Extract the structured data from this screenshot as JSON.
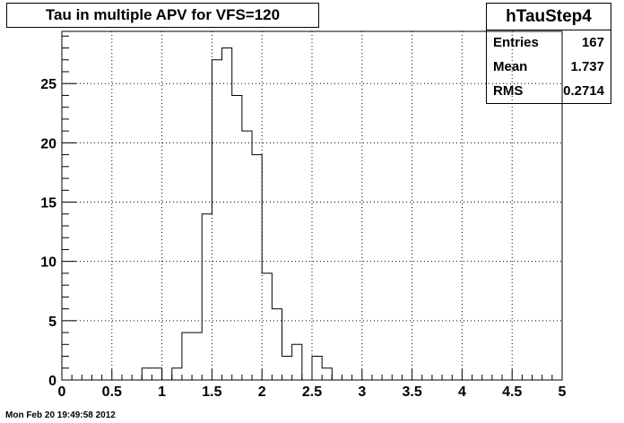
{
  "title": "Tau in multiple APV for VFS=120",
  "stats": {
    "name": "hTauStep4",
    "rows": [
      {
        "label": "Entries",
        "value": "167"
      },
      {
        "label": "Mean",
        "value": "1.737"
      },
      {
        "label": "RMS",
        "value": "0.2714"
      }
    ]
  },
  "timestamp": "Mon Feb 20 19:49:58 2012",
  "chart_data": {
    "type": "bar",
    "title": "Tau in multiple APV for VFS=120",
    "xlabel": "",
    "ylabel": "",
    "xlim": [
      0,
      5
    ],
    "ylim": [
      0,
      29.4
    ],
    "grid": true,
    "bin_width": 0.1,
    "bin_starts": [
      0.8,
      0.9,
      1.1,
      1.2,
      1.3,
      1.4,
      1.5,
      1.6,
      1.7,
      1.8,
      1.9,
      2.0,
      2.1,
      2.2,
      2.3,
      2.5,
      2.6
    ],
    "values": [
      1,
      1,
      1,
      4,
      4,
      14,
      27,
      28,
      24,
      21,
      19,
      9,
      6,
      2,
      3,
      2,
      1
    ],
    "x_ticks": [
      "0",
      "0.5",
      "1",
      "1.5",
      "2",
      "2.5",
      "3",
      "3.5",
      "4",
      "4.5",
      "5"
    ],
    "y_ticks": [
      "0",
      "5",
      "10",
      "15",
      "20",
      "25"
    ]
  }
}
